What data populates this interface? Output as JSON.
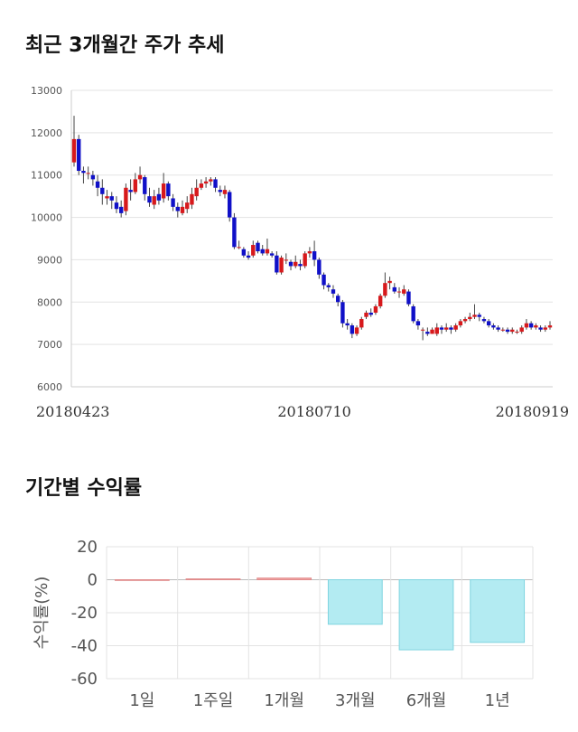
{
  "titles": {
    "price_trend": "최근 3개월간 주가 추세",
    "returns": "기간별 수익률"
  },
  "colors": {
    "up": "#d7191c",
    "down": "#1010c8",
    "wick": "#444444",
    "bar_fill": "#b3ebf2",
    "bar_stroke": "#7fd4e0",
    "bar_pos_fill": "#f4a6a6",
    "grid": "#e3e3e3"
  },
  "chart_data": [
    {
      "type": "candlestick",
      "title": "",
      "ylim": [
        6000,
        13000
      ],
      "yticks": [
        6000,
        7000,
        8000,
        9000,
        10000,
        11000,
        12000,
        13000
      ],
      "xtick_labels": [
        {
          "index": 0,
          "label": "20180423"
        },
        {
          "index": 51,
          "label": "20180710"
        },
        {
          "index": 101,
          "label": "20180919"
        }
      ],
      "grid": "horizontal",
      "candles": [
        [
          11300,
          11850,
          12400,
          11200
        ],
        [
          11850,
          11100,
          11950,
          11000
        ],
        [
          11100,
          11050,
          11200,
          10800
        ],
        [
          11050,
          11050,
          11200,
          10900
        ],
        [
          11000,
          10900,
          11100,
          10750
        ],
        [
          10850,
          10700,
          11000,
          10500
        ],
        [
          10700,
          10550,
          10900,
          10300
        ],
        [
          10450,
          10500,
          10650,
          10300
        ],
        [
          10500,
          10400,
          10600,
          10200
        ],
        [
          10350,
          10200,
          10500,
          10100
        ],
        [
          10250,
          10100,
          10400,
          10000
        ],
        [
          10150,
          10700,
          10800,
          10050
        ],
        [
          10650,
          10600,
          10900,
          10400
        ],
        [
          10600,
          10900,
          11050,
          10550
        ],
        [
          10900,
          11000,
          11200,
          10800
        ],
        [
          10950,
          10550,
          11000,
          10400
        ],
        [
          10500,
          10350,
          10700,
          10250
        ],
        [
          10300,
          10500,
          10650,
          10200
        ],
        [
          10550,
          10400,
          10700,
          10300
        ],
        [
          10450,
          10800,
          11050,
          10350
        ],
        [
          10800,
          10500,
          10850,
          10400
        ],
        [
          10450,
          10250,
          10550,
          10150
        ],
        [
          10250,
          10150,
          10350,
          10000
        ],
        [
          10100,
          10250,
          10400,
          10050
        ],
        [
          10200,
          10350,
          10500,
          10100
        ],
        [
          10300,
          10550,
          10700,
          10200
        ],
        [
          10500,
          10700,
          10900,
          10400
        ],
        [
          10700,
          10800,
          10900,
          10650
        ],
        [
          10800,
          10850,
          10950,
          10700
        ],
        [
          10850,
          10900,
          10950,
          10750
        ],
        [
          10900,
          10700,
          10950,
          10600
        ],
        [
          10650,
          10600,
          10750,
          10500
        ],
        [
          10550,
          10650,
          10750,
          10450
        ],
        [
          10600,
          10000,
          10650,
          9900
        ],
        [
          10000,
          9300,
          10100,
          9250
        ],
        [
          9300,
          9300,
          9450,
          9250
        ],
        [
          9250,
          9100,
          9300,
          9050
        ],
        [
          9100,
          9050,
          9200,
          9000
        ],
        [
          9100,
          9350,
          9450,
          9050
        ],
        [
          9400,
          9200,
          9450,
          9150
        ],
        [
          9250,
          9150,
          9350,
          9100
        ],
        [
          9150,
          9250,
          9500,
          9100
        ],
        [
          9150,
          9100,
          9200,
          9050
        ],
        [
          9100,
          8700,
          9200,
          8650
        ],
        [
          8700,
          9050,
          9100,
          8650
        ],
        [
          9000,
          9000,
          9150,
          8900
        ],
        [
          8950,
          8850,
          9000,
          8750
        ],
        [
          8850,
          8950,
          9100,
          8800
        ],
        [
          8900,
          8850,
          9000,
          8750
        ],
        [
          8850,
          9150,
          9200,
          8800
        ],
        [
          9150,
          9200,
          9300,
          9050
        ],
        [
          9200,
          9000,
          9450,
          8850
        ],
        [
          9000,
          8650,
          9050,
          8550
        ],
        [
          8650,
          8400,
          8700,
          8300
        ],
        [
          8400,
          8350,
          8450,
          8250
        ],
        [
          8300,
          8200,
          8400,
          8100
        ],
        [
          8150,
          8000,
          8200,
          7900
        ],
        [
          8000,
          7500,
          8050,
          7400
        ],
        [
          7500,
          7450,
          7600,
          7350
        ],
        [
          7450,
          7250,
          7500,
          7150
        ],
        [
          7250,
          7400,
          7450,
          7200
        ],
        [
          7400,
          7600,
          7650,
          7350
        ],
        [
          7650,
          7750,
          7800,
          7600
        ],
        [
          7750,
          7700,
          7850,
          7650
        ],
        [
          7750,
          7900,
          7950,
          7700
        ],
        [
          7900,
          8150,
          8200,
          7850
        ],
        [
          8150,
          8450,
          8700,
          8100
        ],
        [
          8450,
          8500,
          8600,
          8300
        ],
        [
          8350,
          8250,
          8450,
          8200
        ],
        [
          8250,
          8250,
          8350,
          8100
        ],
        [
          8200,
          8300,
          8400,
          8150
        ],
        [
          8250,
          7950,
          8300,
          7900
        ],
        [
          7900,
          7550,
          7950,
          7500
        ],
        [
          7550,
          7450,
          7600,
          7350
        ],
        [
          7350,
          7350,
          7400,
          7100
        ],
        [
          7300,
          7250,
          7400,
          7200
        ],
        [
          7250,
          7350,
          7400,
          7250
        ],
        [
          7250,
          7400,
          7500,
          7200
        ],
        [
          7400,
          7350,
          7450,
          7250
        ],
        [
          7350,
          7400,
          7500,
          7300
        ],
        [
          7400,
          7350,
          7450,
          7250
        ],
        [
          7350,
          7450,
          7500,
          7300
        ],
        [
          7450,
          7550,
          7600,
          7400
        ],
        [
          7550,
          7600,
          7650,
          7500
        ],
        [
          7600,
          7650,
          7750,
          7550
        ],
        [
          7650,
          7700,
          7950,
          7600
        ],
        [
          7700,
          7650,
          7750,
          7550
        ],
        [
          7600,
          7550,
          7650,
          7500
        ],
        [
          7550,
          7450,
          7600,
          7400
        ],
        [
          7450,
          7400,
          7500,
          7350
        ],
        [
          7400,
          7350,
          7450,
          7300
        ],
        [
          7350,
          7350,
          7400,
          7300
        ],
        [
          7350,
          7300,
          7400,
          7250
        ],
        [
          7300,
          7350,
          7400,
          7250
        ],
        [
          7300,
          7300,
          7350,
          7250
        ],
        [
          7300,
          7400,
          7450,
          7250
        ],
        [
          7400,
          7500,
          7600,
          7350
        ],
        [
          7500,
          7400,
          7550,
          7350
        ],
        [
          7400,
          7450,
          7500,
          7350
        ],
        [
          7400,
          7350,
          7450,
          7300
        ],
        [
          7350,
          7400,
          7450,
          7300
        ],
        [
          7400,
          7450,
          7550,
          7350
        ]
      ]
    },
    {
      "type": "bar",
      "categories": [
        "1일",
        "1주일",
        "1개월",
        "3개월",
        "6개월",
        "1년"
      ],
      "values": [
        0,
        0.5,
        1.0,
        -27,
        -42.5,
        -38
      ],
      "ylabel": "수익률(%)",
      "ylim": [
        -60,
        20
      ],
      "yticks": [
        20,
        0,
        -20,
        -40,
        -60
      ],
      "grid": "both"
    }
  ]
}
